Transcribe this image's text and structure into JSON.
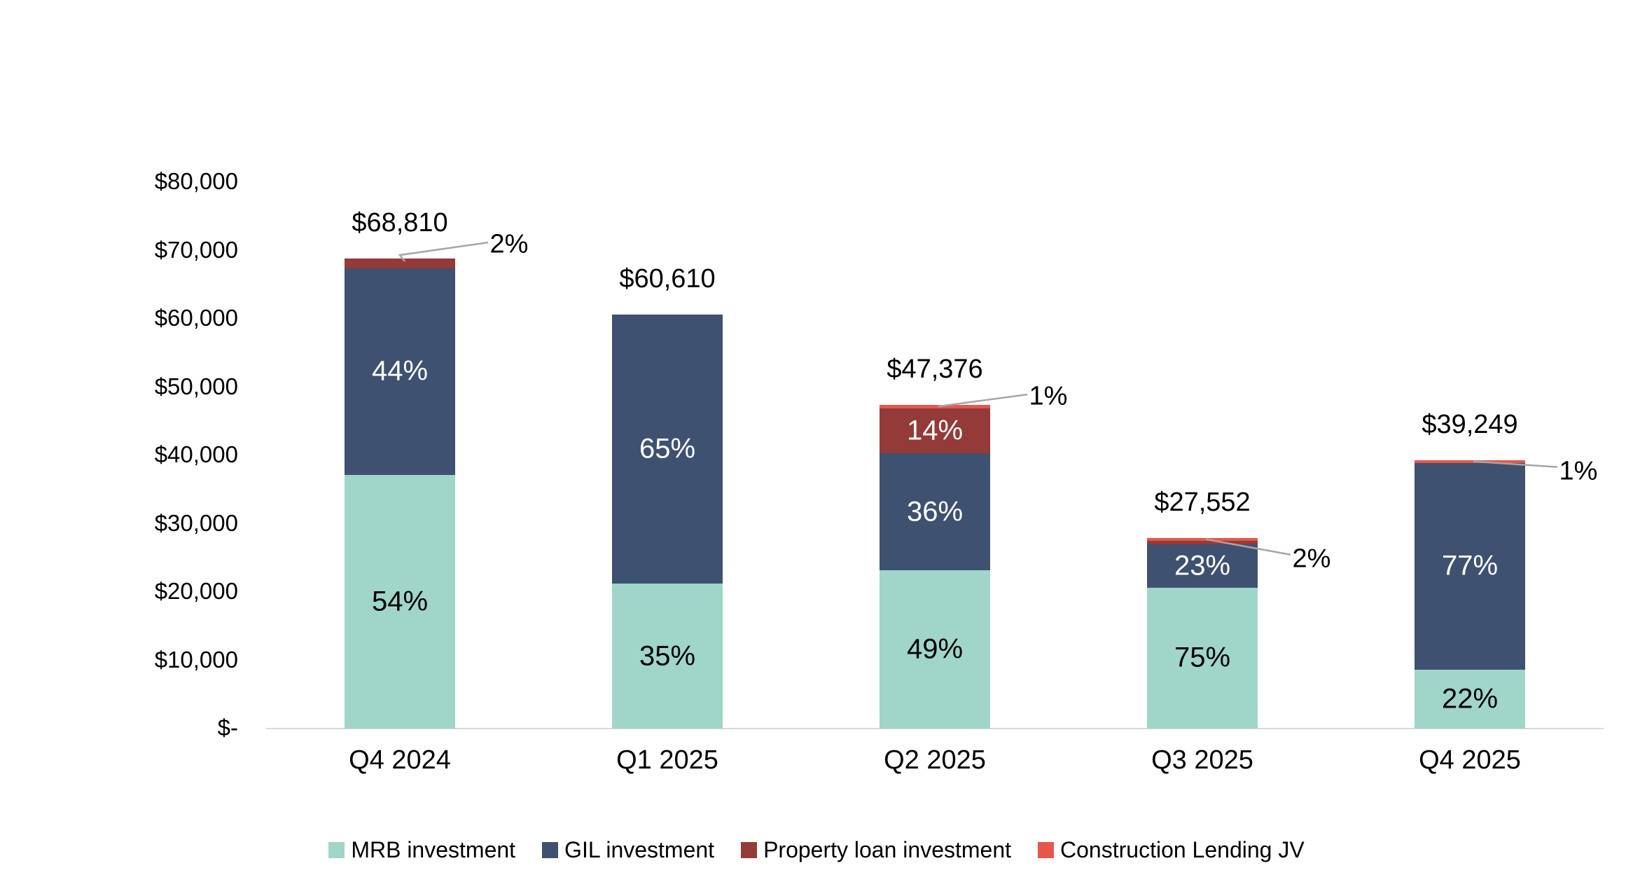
{
  "chart_data": {
    "type": "bar",
    "subtype": "stacked-column",
    "title": "",
    "categories": [
      "Q4 2024",
      "Q1 2025",
      "Q2 2025",
      "Q3 2025",
      "Q4 2025"
    ],
    "totals": [
      68810,
      60610,
      47376,
      27552,
      39249
    ],
    "total_labels": [
      "$68,810",
      "$60,610",
      "$47,376",
      "$27,552",
      "$39,249"
    ],
    "series": [
      {
        "name": "MRB investment",
        "color": "#A0D5C9",
        "label_color": "#000000",
        "pcts": [
          54,
          35,
          49,
          75,
          22
        ]
      },
      {
        "name": "GIL investment",
        "color": "#3F5170",
        "label_color": "#FFFFFF",
        "pcts": [
          44,
          65,
          36,
          23,
          77
        ]
      },
      {
        "name": "Property loan investment",
        "color": "#943A38",
        "label_color": "#FFFFFF",
        "pcts": [
          2,
          0,
          14,
          1,
          0
        ]
      },
      {
        "name": "Construction Lending JV",
        "color": "#E8564B",
        "label_color": "#FFFFFF",
        "pcts": [
          0,
          0,
          1,
          1,
          1
        ]
      }
    ],
    "inside_label_min_pct": 14,
    "callouts": [
      {
        "category_index": 0,
        "label": "2%"
      },
      {
        "category_index": 2,
        "label": "1%"
      },
      {
        "category_index": 3,
        "label": "2%"
      },
      {
        "category_index": 4,
        "label": "1%"
      }
    ],
    "y_axis": {
      "min": 0,
      "max": 80000,
      "step": 10000,
      "tick_labels": [
        "$-",
        "$10,000",
        "$20,000",
        "$30,000",
        "$40,000",
        "$50,000",
        "$60,000",
        "$70,000",
        "$80,000"
      ]
    },
    "xlabel": "",
    "ylabel": "",
    "grid": false,
    "legend_position": "bottom"
  },
  "colors": {
    "background": "#FFFFFF",
    "text": "#000000",
    "axis_line": "#D9D9D9",
    "leader_line": "#A6A6A6"
  }
}
